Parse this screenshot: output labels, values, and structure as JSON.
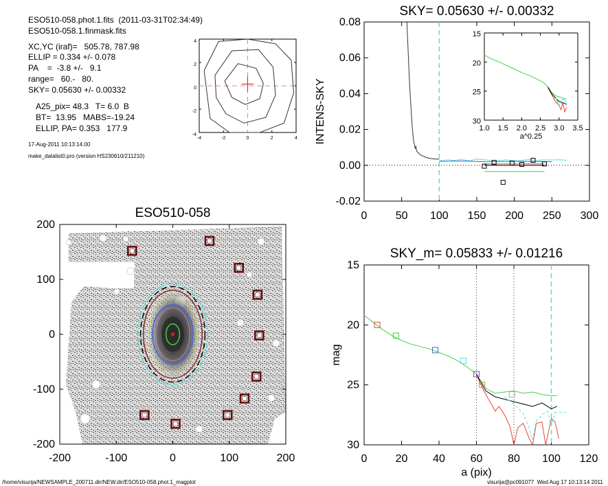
{
  "header": {
    "file_line": "ESO510-058.phot.1.fits  (2011-03-31T02:34:49)",
    "mask_line": "ESO510-058.1.finmask.fits",
    "xcyc": "XC,YC (iraf)=   505.78, 787.98",
    "ellip": "ELLIP = 0.334 +/- 0.078",
    "pa": "PA    =  -3.8 +/-   9.1",
    "range": "range=   60.-   80.",
    "sky": "SKY= 0.05630 +/- 0.00332",
    "a25": "A25_pix= 48.3   T= 6.0  B",
    "bt": "BT=  13.95   MABS=-19.24",
    "ellip_pa": "ELLIP, PA= 0.353   177.9",
    "date": "17-Aug-2011 10:13:14.00",
    "program": "make_datalist0.pro (version HS230610/211210)"
  },
  "footer": {
    "path": "/home/visurija/NEWSAMPLE_200711.dir/NEW.dir/ESO510-058.phot.1_magplot",
    "user": "visurija@pc091077  Wed Aug 17 10:13:14 2011"
  },
  "colors": {
    "red": "#e8453c",
    "green": "#44d044",
    "cyan": "#55dddd",
    "blue": "#4466cc",
    "brown": "#8b2a1a",
    "gray": "#888888"
  },
  "chart_data": [
    {
      "id": "center_contour",
      "type": "scatter",
      "title": "",
      "xlim": [
        -4,
        4
      ],
      "ylim": [
        -4,
        4
      ],
      "xticks": [
        -4,
        -2,
        0,
        2,
        4
      ],
      "yticks": [
        -4,
        -2,
        0,
        2,
        4
      ],
      "tick_labels_x": [
        "-4",
        "-2",
        "0",
        "2",
        "4"
      ],
      "tick_labels_y": [
        "-4",
        "-2",
        "0",
        "2",
        "4"
      ],
      "center": [
        0,
        0
      ],
      "contours": [
        [
          [
            -1.9,
            0.4
          ],
          [
            -0.8,
            1.9
          ],
          [
            0.7,
            1.5
          ],
          [
            1.3,
            0.2
          ],
          [
            1.0,
            -1.1
          ],
          [
            -0.2,
            -1.6
          ],
          [
            -1.3,
            -1.0
          ]
        ],
        [
          [
            -2.7,
            0.9
          ],
          [
            -1.3,
            3.0
          ],
          [
            0.9,
            3.1
          ],
          [
            2.1,
            1.6
          ],
          [
            2.3,
            -0.8
          ],
          [
            1.5,
            -2.7
          ],
          [
            -0.3,
            -3.2
          ],
          [
            -1.8,
            -2.4
          ],
          [
            -2.6,
            -1.0
          ]
        ],
        [
          [
            -3.6,
            1.3
          ],
          [
            -2.4,
            3.8
          ],
          [
            0.0,
            4.0
          ],
          [
            2.3,
            3.6
          ],
          [
            3.6,
            2.2
          ],
          [
            3.8,
            -0.6
          ],
          [
            3.0,
            -3.2
          ],
          [
            1.0,
            -4.0
          ],
          [
            -1.5,
            -4.0
          ],
          [
            -3.1,
            -2.8
          ]
        ]
      ]
    },
    {
      "id": "sky_profile",
      "type": "line",
      "title": "SKY= 0.05630 +/- 0.00332",
      "xlabel": "",
      "ylabel": "INTENS-SKY",
      "xlim": [
        0,
        300
      ],
      "ylim": [
        -0.02,
        0.08
      ],
      "xticks": [
        0,
        50,
        100,
        150,
        200,
        250,
        300
      ],
      "yticks": [
        -0.02,
        0.0,
        0.02,
        0.04,
        0.06,
        0.08
      ],
      "tick_labels_x": [
        "0",
        "50",
        "100",
        "150",
        "200",
        "250",
        "300"
      ],
      "tick_labels_y": [
        "-0.02",
        "0.00",
        "0.02",
        "0.04",
        "0.06",
        "0.08"
      ],
      "vline": 100,
      "series": [
        {
          "color": "#333333",
          "x": [
            57,
            58,
            59,
            60,
            61,
            62,
            63,
            64,
            65,
            66,
            67,
            68,
            69,
            70,
            72,
            75,
            78,
            82,
            86,
            90,
            95,
            100
          ],
          "y": [
            0.08,
            0.07,
            0.06,
            0.05,
            0.042,
            0.035,
            0.028,
            0.022,
            0.017,
            0.013,
            0.0115,
            0.0095,
            0.0105,
            0.008,
            0.007,
            0.0058,
            0.0052,
            0.0045,
            0.004,
            0.0037,
            0.0035,
            0.0034
          ]
        },
        {
          "color": "#55dddd",
          "x": [
            100,
            110,
            120,
            130,
            140,
            150,
            160,
            170,
            180,
            190,
            200,
            210,
            220,
            230,
            240,
            250,
            260,
            270
          ],
          "y": [
            0.0025,
            0.003,
            0.0028,
            0.0032,
            0.0025,
            0.0035,
            0.003,
            0.0028,
            0.0027,
            0.003,
            0.0025,
            0.0028,
            0.0032,
            0.0028,
            0.003,
            0.0029,
            0.0031,
            0.0028
          ]
        },
        {
          "color": "#4466cc",
          "x": [
            100,
            130,
            160,
            190,
            220,
            250
          ],
          "y": [
            0.0022,
            0.0024,
            0.002,
            0.0021,
            0.0022,
            0.002
          ]
        },
        {
          "color": "#44d044",
          "x": [
            160,
            240
          ],
          "y": [
            -0.0035,
            -0.0035
          ]
        },
        {
          "color": "#e8453c",
          "x": [
            160,
            240
          ],
          "y": [
            0.0008,
            0.0008
          ]
        },
        {
          "color": "#000000",
          "x": [
            160,
            240
          ],
          "y": [
            0.0,
            0.0
          ]
        }
      ],
      "markers": {
        "x": [
          160,
          173,
          185,
          197,
          210,
          225,
          240
        ],
        "y": [
          -0.0005,
          0.0016,
          -0.0095,
          0.0012,
          0.0005,
          0.0028,
          0.0008
        ]
      },
      "inset": {
        "xlabel": "a^0.25",
        "xlim": [
          1.0,
          3.5
        ],
        "ylim": [
          15,
          30
        ],
        "xticks": [
          1.0,
          1.5,
          2.0,
          2.5,
          3.0,
          3.5
        ],
        "yticks": [
          15,
          20,
          25,
          30
        ],
        "tick_labels_x": [
          "1.0",
          "1.5",
          "2.0",
          "2.5",
          "3.0",
          "3.5"
        ],
        "tick_labels_y": [
          "15",
          "20",
          "25",
          "30"
        ],
        "series": [
          {
            "color": "#44d044",
            "x": [
              1.0,
              1.2,
              1.4,
              1.6,
              1.8,
              2.0,
              2.2,
              2.4,
              2.6,
              2.7,
              2.8,
              2.9,
              3.0,
              3.1,
              3.2
            ],
            "y": [
              18.8,
              19.5,
              20.0,
              20.6,
              21.2,
              21.8,
              22.3,
              22.9,
              23.6,
              24.3,
              25.2,
              25.8,
              26.0,
              26.2,
              26.4
            ]
          },
          {
            "color": "#e8453c",
            "x": [
              2.7,
              2.8,
              2.9,
              3.0,
              3.05,
              3.1,
              3.15,
              3.2
            ],
            "y": [
              24.4,
              25.6,
              26.8,
              27.5,
              28.2,
              27.0,
              28.6,
              27.8
            ]
          },
          {
            "color": "#000000",
            "x": [
              2.7,
              2.8,
              2.9,
              3.0,
              3.1,
              3.2
            ],
            "y": [
              24.3,
              25.4,
              26.2,
              26.8,
              27.0,
              27.3
            ]
          },
          {
            "color": "#55dddd",
            "x": [
              2.9,
              3.0,
              3.1,
              3.2
            ],
            "y": [
              26.0,
              27.5,
              26.3,
              27.0
            ]
          }
        ]
      }
    },
    {
      "id": "galaxy_image",
      "type": "scatter",
      "title": "ESO510-058",
      "xlim": [
        -200,
        200
      ],
      "ylim": [
        -200,
        200
      ],
      "xticks": [
        -200,
        -100,
        0,
        100,
        200
      ],
      "yticks": [
        -200,
        -100,
        0,
        100,
        200
      ],
      "tick_labels_x": [
        "-200",
        "-100",
        "0",
        "100",
        "200"
      ],
      "tick_labels_y": [
        "-200",
        "-100",
        "0",
        "100",
        "200"
      ],
      "markers": {
        "x": [
          -72,
          65,
          117,
          150,
          153,
          148,
          127,
          -50,
          5,
          97
        ],
        "y": [
          152,
          170,
          121,
          72,
          -2,
          -77,
          -117,
          -147,
          -163,
          -147
        ]
      },
      "ellipses": [
        {
          "color": "#55dddd",
          "a": 62,
          "b": 92,
          "dashed": true
        },
        {
          "color": "#000000",
          "a": 57,
          "b": 87,
          "dashed": true
        },
        {
          "color": "#8b2a1a",
          "a": 52,
          "b": 80,
          "dashed": false
        },
        {
          "color": "#4466cc",
          "a": 36,
          "b": 54,
          "dashed": false
        },
        {
          "color": "#44d044",
          "a": 12,
          "b": 19,
          "dashed": false
        }
      ]
    },
    {
      "id": "mag_profile",
      "type": "line",
      "title": "SKY_m=  0.05833 +/- 0.01216",
      "xlabel": "a (pix)",
      "ylabel": "mag",
      "xlim": [
        0,
        120
      ],
      "ylim": [
        15,
        30
      ],
      "xticks": [
        0,
        20,
        40,
        60,
        80,
        100,
        120
      ],
      "yticks": [
        15,
        20,
        25,
        30
      ],
      "tick_labels_x": [
        "0",
        "20",
        "40",
        "60",
        "80",
        "100",
        "120"
      ],
      "tick_labels_y": [
        "15",
        "20",
        "25",
        "30"
      ],
      "vlines_dotted": [
        60,
        80
      ],
      "vline_cyan": 100,
      "series": [
        {
          "color": "#44d044",
          "x": [
            0,
            5,
            10,
            15,
            20,
            25,
            30,
            35,
            40,
            45,
            50,
            55,
            60,
            62,
            65,
            70,
            75,
            80,
            85,
            90,
            95,
            100,
            103
          ],
          "y": [
            19.2,
            19.8,
            20.4,
            20.9,
            21.3,
            21.6,
            21.8,
            22.0,
            22.3,
            22.6,
            23.0,
            23.5,
            24.1,
            24.6,
            25.3,
            25.7,
            25.6,
            25.5,
            25.7,
            25.6,
            25.8,
            25.9,
            25.9
          ]
        },
        {
          "color": "#000000",
          "x": [
            60,
            62,
            65,
            70,
            75,
            80,
            85,
            90,
            95,
            100,
            103
          ],
          "y": [
            24.1,
            24.7,
            25.5,
            26.0,
            26.2,
            26.4,
            26.6,
            26.8,
            26.5,
            27.0,
            26.8
          ]
        },
        {
          "color": "#e8453c",
          "x": [
            60,
            62,
            65,
            68,
            70,
            72,
            75,
            78,
            80,
            82,
            85,
            88,
            90,
            92,
            95,
            97,
            100,
            102,
            104
          ],
          "y": [
            24.2,
            24.9,
            25.8,
            26.6,
            27.2,
            26.8,
            27.5,
            28.5,
            30,
            28.6,
            28.2,
            29.4,
            30,
            28.2,
            28.1,
            30,
            27.8,
            28.1,
            29.5
          ]
        },
        {
          "color": "#55dddd",
          "x": [
            75,
            80,
            85,
            88,
            90,
            92,
            95,
            98,
            100,
            102,
            105,
            108
          ],
          "y": [
            26.0,
            26.6,
            27.4,
            28.5,
            29.6,
            28.0,
            27.5,
            27.2,
            28.4,
            27.3,
            27.3,
            27.3
          ]
        }
      ],
      "markers": [
        {
          "color": "#e8453c",
          "x": 7,
          "y": 20.0
        },
        {
          "color": "#44d044",
          "x": 17,
          "y": 20.9
        },
        {
          "color": "#4466cc",
          "x": 38,
          "y": 22.1
        },
        {
          "color": "#55dddd",
          "x": 53,
          "y": 23.0
        },
        {
          "color": "#8b44cc",
          "x": 60,
          "y": 24.1
        },
        {
          "color": "#cc8844",
          "x": 63,
          "y": 25.0
        },
        {
          "color": "#aaaaaa",
          "x": 79,
          "y": 25.8
        }
      ]
    }
  ]
}
